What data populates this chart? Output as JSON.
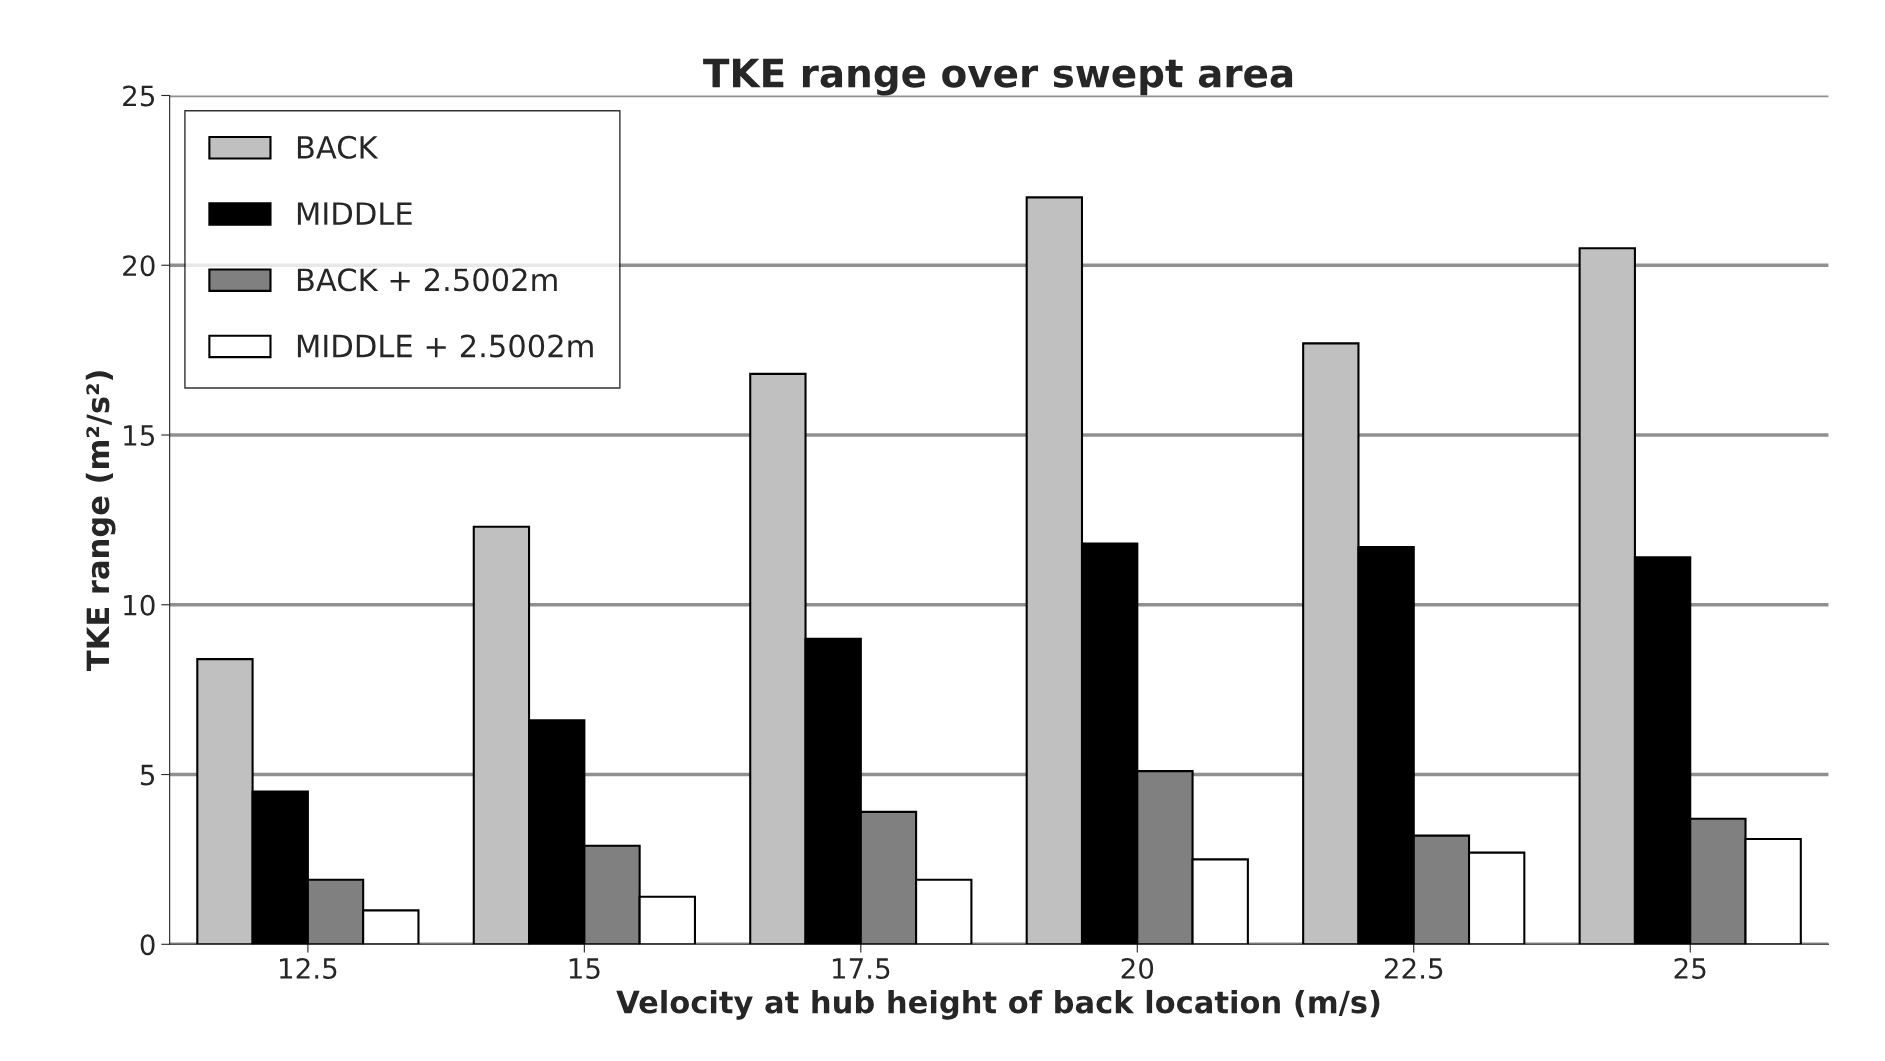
{
  "chart_data": {
    "type": "bar",
    "title": "TKE range over swept area",
    "xlabel": "Velocity at hub height of back location (m/s)",
    "ylabel": "TKE range (m²/s²)",
    "categories": [
      "12.5",
      "15",
      "17.5",
      "20",
      "22.5",
      "25"
    ],
    "series": [
      {
        "name": "BACK",
        "color": "#c0c0c0",
        "values": [
          8.4,
          12.3,
          16.8,
          22.0,
          17.7,
          20.5
        ]
      },
      {
        "name": "MIDDLE",
        "color": "#000000",
        "values": [
          4.5,
          6.6,
          9.0,
          11.8,
          11.7,
          11.4
        ]
      },
      {
        "name": "BACK + 2.5002m",
        "color": "#808080",
        "values": [
          1.9,
          2.9,
          3.9,
          5.1,
          3.2,
          3.7
        ]
      },
      {
        "name": "MIDDLE + 2.5002m",
        "color": "#ffffff",
        "values": [
          1.0,
          1.4,
          1.9,
          2.5,
          2.7,
          3.1
        ]
      }
    ],
    "ylim": [
      0,
      25
    ],
    "yticks": [
      0,
      5,
      10,
      15,
      20,
      25
    ],
    "grid": "y",
    "legend": "top left"
  }
}
